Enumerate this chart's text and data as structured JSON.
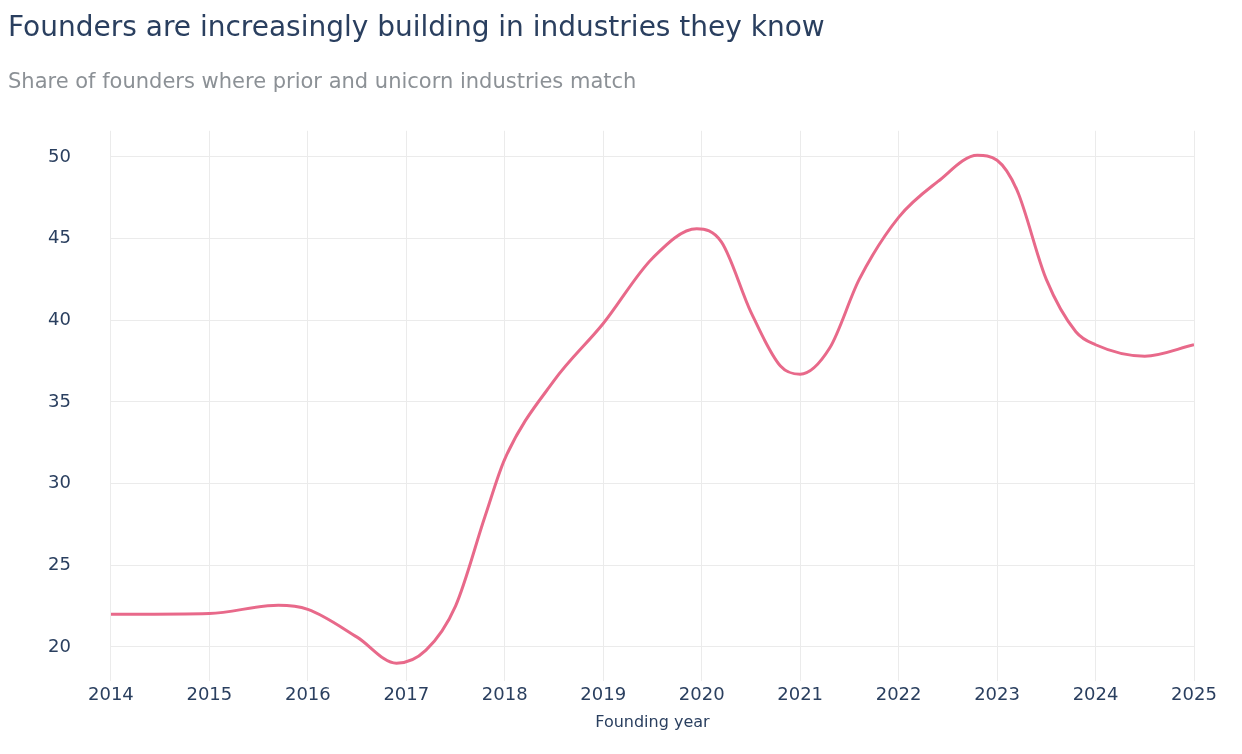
{
  "chart_data": {
    "type": "line",
    "title": "Founders are increasingly building in industries they know",
    "subtitle": "Share of founders where prior and unicorn industries match",
    "xlabel": "Founding year",
    "x": [
      2014,
      2015,
      2015.7,
      2016,
      2016.5,
      2016.9,
      2017.2,
      2017.5,
      2017.8,
      2018,
      2018.5,
      2019,
      2019.5,
      2019.95,
      2020.2,
      2020.5,
      2020.8,
      2021,
      2021.3,
      2021.6,
      2022,
      2022.4,
      2022.8,
      2023,
      2023.2,
      2023.5,
      2023.8,
      2024,
      2024.5,
      2025
    ],
    "series": [
      {
        "color": "#e8698a",
        "values": [
          22.0,
          22.05,
          22.55,
          22.3,
          20.6,
          19.0,
          19.8,
          22.5,
          28.0,
          31.5,
          36.3,
          39.8,
          43.8,
          45.6,
          44.8,
          40.5,
          37.2,
          36.7,
          38.3,
          42.5,
          46.3,
          48.5,
          50.1,
          49.8,
          48.0,
          42.5,
          39.3,
          38.5,
          37.8,
          38.5
        ]
      }
    ],
    "xlim": [
      2014,
      2025
    ],
    "xticks": [
      2014,
      2015,
      2016,
      2017,
      2018,
      2019,
      2020,
      2021,
      2022,
      2023,
      2024,
      2025
    ],
    "ylim": [
      17.9,
      51.6
    ],
    "yticks": [
      20,
      25,
      30,
      35,
      40,
      45,
      50
    ],
    "grid": true,
    "legend": false,
    "marker": "none",
    "line_style": "solid"
  }
}
